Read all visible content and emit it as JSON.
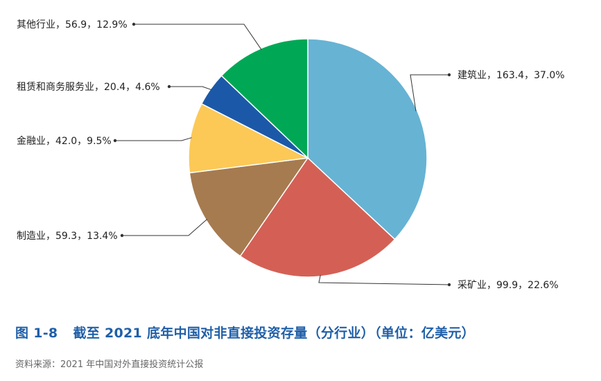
{
  "caption": {
    "number": "图 1-8",
    "title": "截至 2021 底年中国对非直接投资存量（分行业）（单位：亿美元）"
  },
  "source": "资料来源：2021 年中国对外直接投资统计公报",
  "chart_data": {
    "type": "pie",
    "unit": "亿美元",
    "slices": [
      {
        "category": "建筑业",
        "value": 163.4,
        "percent": "37.0%",
        "label": "建筑业，163.4，37.0%",
        "color": "#67b3d4"
      },
      {
        "category": "采矿业",
        "value": 99.9,
        "percent": "22.6%",
        "label": "采矿业，99.9，22.6%",
        "color": "#d46055"
      },
      {
        "category": "制造业",
        "value": 59.3,
        "percent": "13.4%",
        "label": "制造业，59.3，13.4%",
        "color": "#a67b50"
      },
      {
        "category": "金融业",
        "value": 42.0,
        "percent": "9.5%",
        "label": "金融业，42.0，9.5%",
        "color": "#fcc957"
      },
      {
        "category": "租赁和商务服务业",
        "value": 20.4,
        "percent": "4.6%",
        "label": "租赁和商务服务业，20.4，4.6%",
        "color": "#1b59a8"
      },
      {
        "category": "其他行业",
        "value": 56.9,
        "percent": "12.9%",
        "label": "其他行业，56.9，12.9%",
        "color": "#00a855"
      }
    ]
  }
}
